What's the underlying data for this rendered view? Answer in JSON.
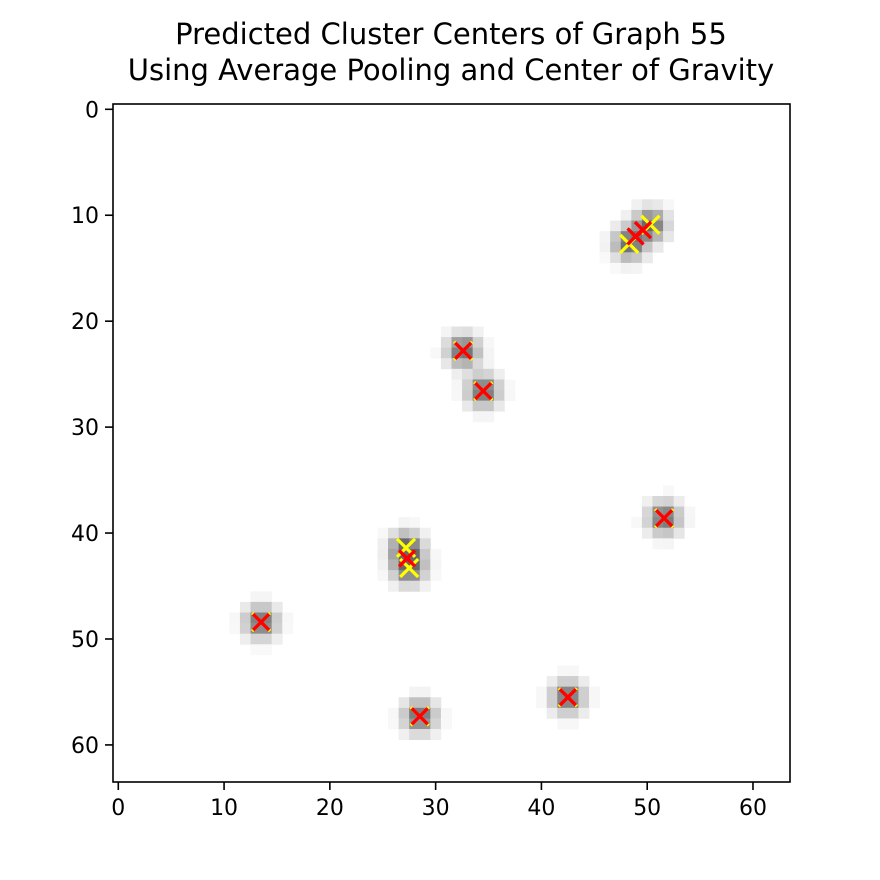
{
  "chart_data": {
    "type": "scatter",
    "title": "Predicted Cluster Centers of Graph 55",
    "subtitle": "Using Average Pooling and Center of Gravity",
    "xlabel": "",
    "ylabel": "",
    "xlim": [
      -0.5,
      63.5
    ],
    "ylim": [
      63.5,
      -0.5
    ],
    "y_inverted": true,
    "grid": false,
    "x_ticks": [
      0,
      10,
      20,
      30,
      40,
      50,
      60
    ],
    "y_ticks": [
      0,
      10,
      20,
      30,
      40,
      50,
      60
    ],
    "background_image": {
      "kind": "grayscale intensity image (64x64) with blurred blobs around cluster points",
      "colormap": "gray_r"
    },
    "series": [
      {
        "marker": "x",
        "color": "#ffff00",
        "points": [
          {
            "x": 48.3,
            "y": 12.7
          },
          {
            "x": 50.3,
            "y": 10.9
          },
          {
            "x": 32.6,
            "y": 22.8
          },
          {
            "x": 34.5,
            "y": 26.6
          },
          {
            "x": 51.6,
            "y": 38.6
          },
          {
            "x": 27.2,
            "y": 41.4
          },
          {
            "x": 27.5,
            "y": 43.3
          },
          {
            "x": 13.5,
            "y": 48.4
          },
          {
            "x": 42.5,
            "y": 55.5
          },
          {
            "x": 28.5,
            "y": 57.3
          }
        ]
      },
      {
        "marker": "x",
        "color": "#ff0000",
        "points": [
          {
            "x": 48.9,
            "y": 12.0
          },
          {
            "x": 49.6,
            "y": 11.4
          },
          {
            "x": 32.6,
            "y": 22.8
          },
          {
            "x": 34.5,
            "y": 26.6
          },
          {
            "x": 51.6,
            "y": 38.6
          },
          {
            "x": 27.3,
            "y": 42.4
          },
          {
            "x": 13.5,
            "y": 48.4
          },
          {
            "x": 42.5,
            "y": 55.5
          },
          {
            "x": 28.5,
            "y": 57.3
          }
        ]
      }
    ]
  }
}
